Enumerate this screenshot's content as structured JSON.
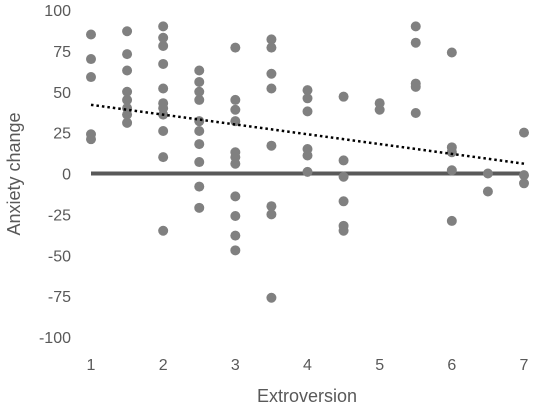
{
  "chart_data": {
    "type": "scatter",
    "title": "",
    "xlabel": "Extroversion",
    "ylabel": "Anxiety change",
    "xlim": [
      1,
      7
    ],
    "ylim": [
      -100,
      100
    ],
    "x_ticks": [
      1,
      2,
      3,
      4,
      5,
      6,
      7
    ],
    "y_ticks": [
      100,
      75,
      50,
      25,
      0,
      -25,
      -50,
      -75,
      -100
    ],
    "x_tick_labels": [
      "1",
      "2",
      "3",
      "4",
      "5",
      "6",
      "7"
    ],
    "y_tick_labels": [
      "100",
      "75",
      "50",
      "25",
      "0",
      "-25",
      "-50",
      "-75",
      "-100"
    ],
    "grid": false,
    "legend": "none",
    "point_color": "#808080",
    "baseline_color": "#595959",
    "trendline_color": "#000000",
    "trendline": {
      "style": "dotted",
      "x": [
        1,
        7
      ],
      "y": [
        42,
        6
      ]
    },
    "reference_line_y": 0,
    "series": [
      {
        "points": [
          [
            1,
            85
          ],
          [
            1,
            70
          ],
          [
            1,
            59
          ],
          [
            1,
            24
          ],
          [
            1,
            21
          ],
          [
            1.5,
            87
          ],
          [
            1.5,
            73
          ],
          [
            1.5,
            63
          ],
          [
            1.5,
            50
          ],
          [
            1.5,
            45
          ],
          [
            1.5,
            40
          ],
          [
            1.5,
            36
          ],
          [
            1.5,
            31
          ],
          [
            2,
            90
          ],
          [
            2,
            83
          ],
          [
            2,
            78
          ],
          [
            2,
            67
          ],
          [
            2,
            52
          ],
          [
            2,
            43
          ],
          [
            2,
            40
          ],
          [
            2,
            36
          ],
          [
            2,
            26
          ],
          [
            2,
            10
          ],
          [
            2,
            -35
          ],
          [
            2.5,
            63
          ],
          [
            2.5,
            56
          ],
          [
            2.5,
            50
          ],
          [
            2.5,
            45
          ],
          [
            2.5,
            32
          ],
          [
            2.5,
            26
          ],
          [
            2.5,
            18
          ],
          [
            2.5,
            7
          ],
          [
            2.5,
            -8
          ],
          [
            2.5,
            -21
          ],
          [
            3,
            77
          ],
          [
            3,
            45
          ],
          [
            3,
            39
          ],
          [
            3,
            32
          ],
          [
            3,
            13
          ],
          [
            3,
            10
          ],
          [
            3,
            6
          ],
          [
            3,
            -14
          ],
          [
            3,
            -26
          ],
          [
            3,
            -38
          ],
          [
            3,
            -47
          ],
          [
            3.5,
            82
          ],
          [
            3.5,
            77
          ],
          [
            3.5,
            61
          ],
          [
            3.5,
            52
          ],
          [
            3.5,
            17
          ],
          [
            3.5,
            -20
          ],
          [
            3.5,
            -25
          ],
          [
            3.5,
            -76
          ],
          [
            4,
            51
          ],
          [
            4,
            46
          ],
          [
            4,
            38
          ],
          [
            4,
            15
          ],
          [
            4,
            11
          ],
          [
            4,
            1
          ],
          [
            4.5,
            47
          ],
          [
            4.5,
            8
          ],
          [
            4.5,
            -2
          ],
          [
            4.5,
            -17
          ],
          [
            4.5,
            -32
          ],
          [
            4.5,
            -35
          ],
          [
            5,
            43
          ],
          [
            5,
            39
          ],
          [
            5.5,
            90
          ],
          [
            5.5,
            80
          ],
          [
            5.5,
            55
          ],
          [
            5.5,
            53
          ],
          [
            5.5,
            37
          ],
          [
            6,
            74
          ],
          [
            6,
            16
          ],
          [
            6,
            13
          ],
          [
            6,
            2
          ],
          [
            6,
            -29
          ],
          [
            6.5,
            0
          ],
          [
            6.5,
            -11
          ],
          [
            7,
            25
          ],
          [
            7,
            -1
          ],
          [
            7,
            -6
          ]
        ]
      }
    ]
  }
}
